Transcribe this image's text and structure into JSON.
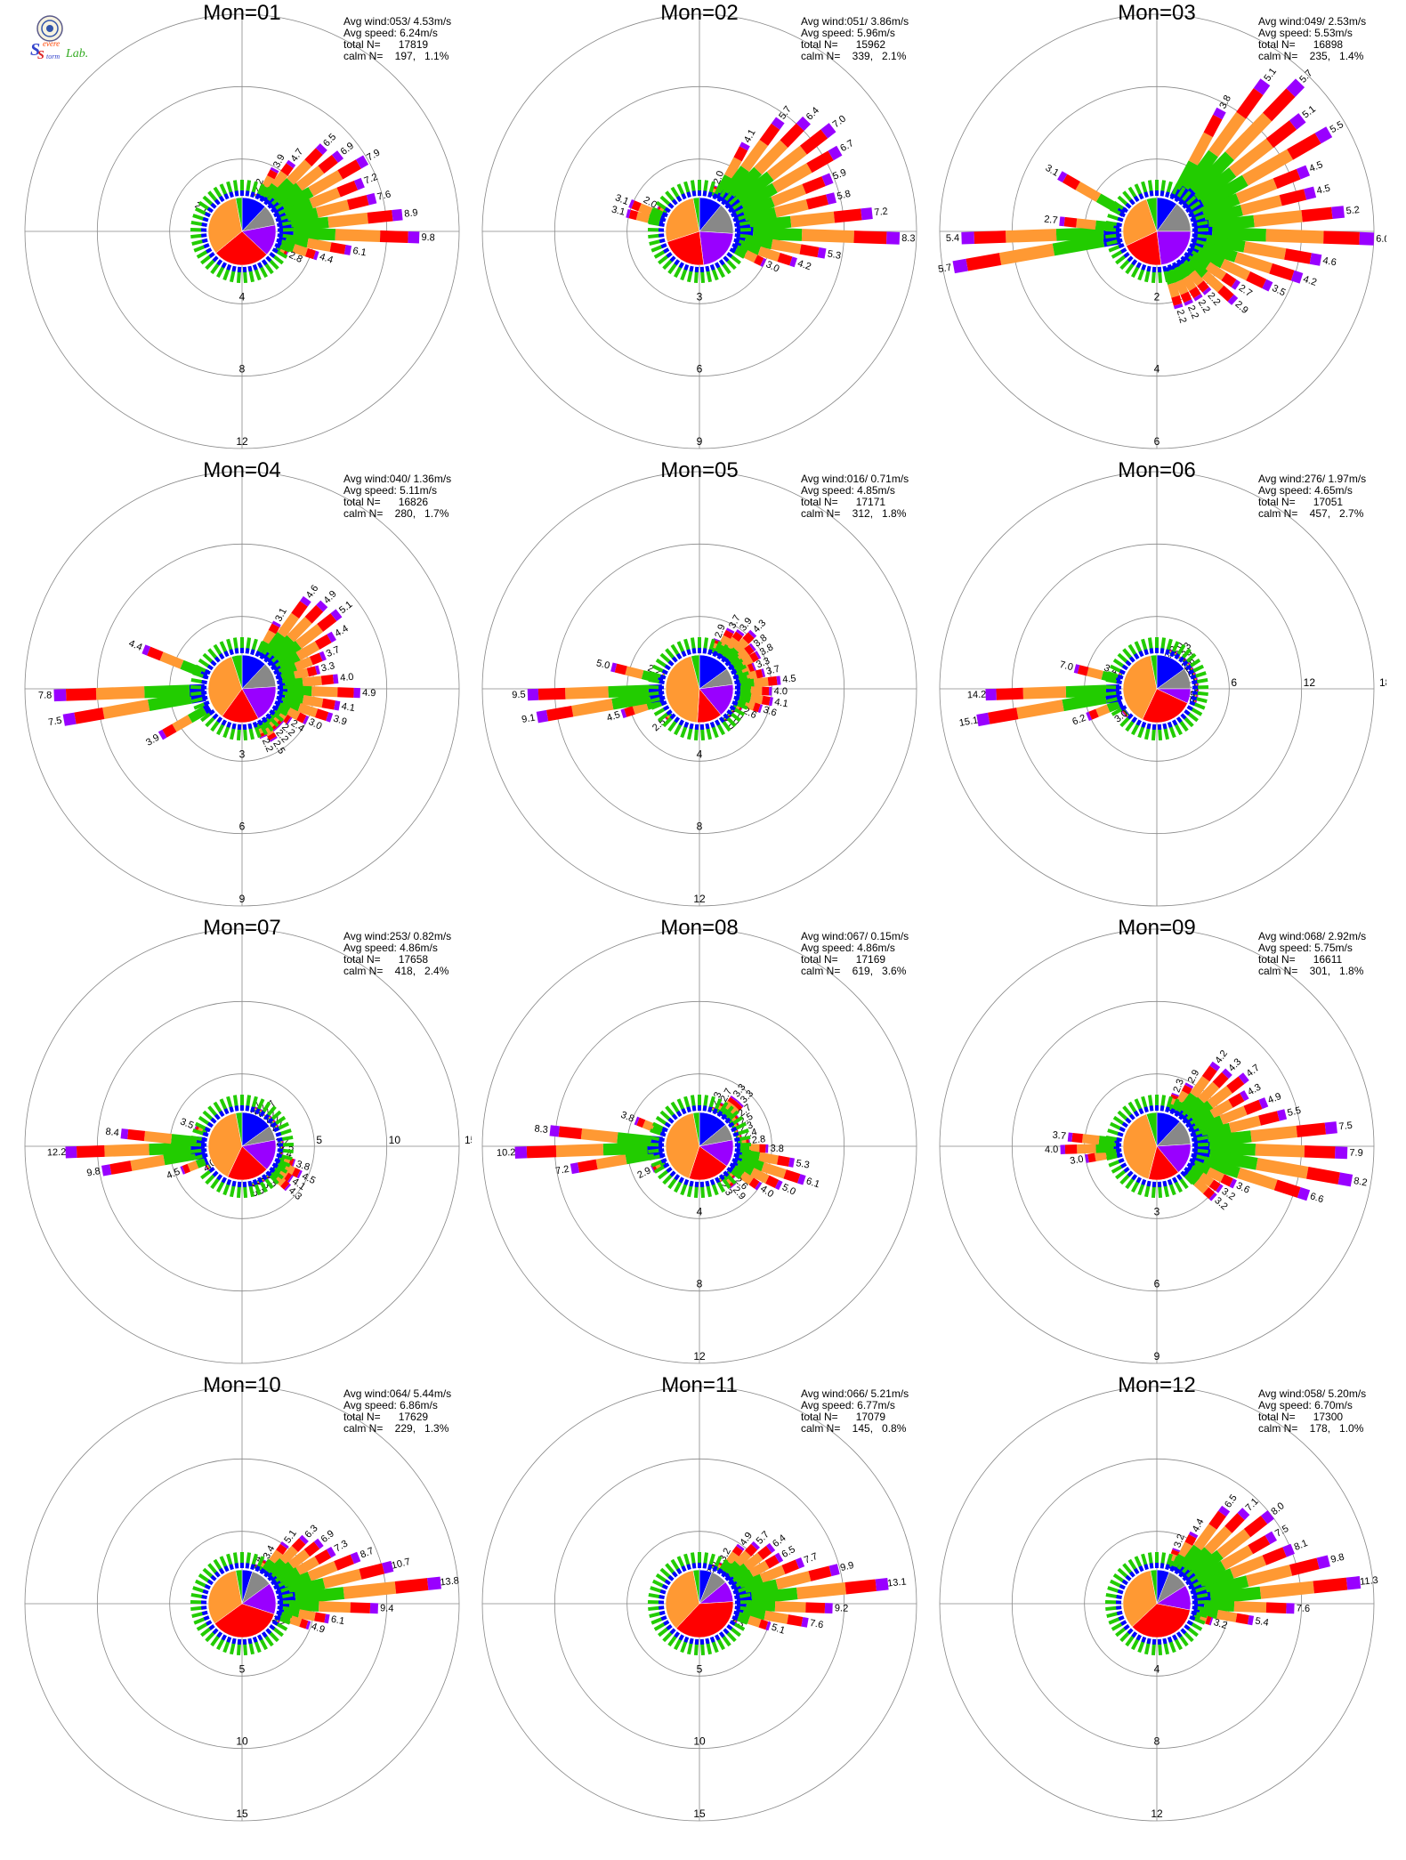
{
  "logo": {
    "text_s1": "S",
    "text_evere": "evere",
    "text_s2": "S",
    "text_torm": "torm",
    "text_lab": "Lab."
  },
  "colors": {
    "blue": "#0000ff",
    "green": "#22cc00",
    "orange": "#ff9933",
    "red": "#ff0000",
    "purple": "#9900ff",
    "gray": "#888888",
    "ring": "#888888"
  },
  "chart_data": [
    {
      "type": "windrose",
      "title": "Mon=01",
      "stats": [
        "Avg wind:053/ 4.53m/s",
        "Avg speed: 6.24m/s",
        "total N=      17819",
        "calm N=    197,   1.1%"
      ],
      "rings": [
        "4",
        "8",
        "12"
      ],
      "ring_max": 12,
      "ring_label_angle": 180,
      "labels": [
        [
          20,
          2.2
        ],
        [
          28,
          3.9
        ],
        [
          36,
          4.7
        ],
        [
          44,
          6.5
        ],
        [
          52,
          6.9
        ],
        [
          60,
          7.9
        ],
        [
          68,
          7.2
        ],
        [
          76,
          7.6
        ],
        [
          84,
          8.9
        ],
        [
          92,
          9.8
        ],
        [
          100,
          6.1
        ],
        [
          108,
          4.4
        ],
        [
          116,
          2.8
        ],
        [
          300,
          2.1
        ]
      ],
      "pie": [
        0.12,
        0.1,
        0.15,
        0.27,
        0.33,
        0.03
      ]
    },
    {
      "type": "windrose",
      "title": "Mon=02",
      "stats": [
        "Avg wind:051/ 3.86m/s",
        "Avg speed: 5.96m/s",
        "total N=      15962",
        "calm N=    339,   2.1%"
      ],
      "rings": [
        "3",
        "6",
        "9"
      ],
      "ring_max": 9,
      "ring_label_angle": 180,
      "labels": [
        [
          20,
          2.0
        ],
        [
          28,
          4.1
        ],
        [
          36,
          5.7
        ],
        [
          44,
          6.4
        ],
        [
          52,
          7.0
        ],
        [
          60,
          6.7
        ],
        [
          68,
          5.9
        ],
        [
          76,
          5.8
        ],
        [
          84,
          7.2
        ],
        [
          92,
          8.3
        ],
        [
          100,
          5.3
        ],
        [
          108,
          4.2
        ],
        [
          116,
          3.0
        ],
        [
          284,
          3.1
        ],
        [
          292,
          3.1
        ],
        [
          300,
          2.0
        ]
      ],
      "pie": [
        0.11,
        0.15,
        0.22,
        0.22,
        0.27,
        0.03
      ]
    },
    {
      "type": "windrose",
      "title": "Mon=03",
      "stats": [
        "Avg wind:049/ 2.53m/s",
        "Avg speed: 5.53m/s",
        "total N=      16898",
        "calm N=    235,   1.4%"
      ],
      "rings": [
        "2",
        "4",
        "6"
      ],
      "ring_max": 6,
      "ring_label_angle": 180,
      "labels": [
        [
          28,
          3.8
        ],
        [
          36,
          5.1
        ],
        [
          44,
          5.7
        ],
        [
          52,
          5.1
        ],
        [
          60,
          5.5
        ],
        [
          68,
          4.5
        ],
        [
          76,
          4.5
        ],
        [
          84,
          5.2
        ],
        [
          92,
          6.0
        ],
        [
          100,
          4.6
        ],
        [
          108,
          4.2
        ],
        [
          116,
          3.5
        ],
        [
          124,
          2.7
        ],
        [
          132,
          2.9
        ],
        [
          140,
          2.2
        ],
        [
          148,
          2.2
        ],
        [
          156,
          2.2
        ],
        [
          164,
          2.2
        ],
        [
          260,
          5.7
        ],
        [
          268,
          5.4
        ],
        [
          276,
          2.7
        ],
        [
          300,
          3.1
        ]
      ],
      "pie": [
        0.1,
        0.15,
        0.23,
        0.2,
        0.27,
        0.05
      ]
    },
    {
      "type": "windrose",
      "title": "Mon=04",
      "stats": [
        "Avg wind:040/ 1.36m/s",
        "Avg speed: 5.11m/s",
        "total N=      16826",
        "calm N=    280,   1.7%"
      ],
      "rings": [
        "3",
        "6",
        "9"
      ],
      "ring_max": 9,
      "ring_label_angle": 180,
      "labels": [
        [
          28,
          3.1
        ],
        [
          36,
          4.6
        ],
        [
          44,
          4.9
        ],
        [
          52,
          5.1
        ],
        [
          60,
          4.4
        ],
        [
          68,
          3.7
        ],
        [
          76,
          3.3
        ],
        [
          84,
          4.0
        ],
        [
          92,
          4.9
        ],
        [
          100,
          4.1
        ],
        [
          108,
          3.9
        ],
        [
          116,
          3.0
        ],
        [
          124,
          2.4
        ],
        [
          132,
          2.2
        ],
        [
          140,
          2.2
        ],
        [
          148,
          2.5
        ],
        [
          156,
          2.2
        ],
        [
          240,
          3.9
        ],
        [
          260,
          7.5
        ],
        [
          268,
          7.8
        ],
        [
          292,
          4.4
        ]
      ],
      "pie": [
        0.12,
        0.12,
        0.18,
        0.18,
        0.35,
        0.05
      ]
    },
    {
      "type": "windrose",
      "title": "Mon=05",
      "stats": [
        "Avg wind:016/ 0.71m/s",
        "Avg speed: 4.85m/s",
        "total N=      17171",
        "calm N=    312,   1.8%"
      ],
      "rings": [
        "4",
        "8",
        "12"
      ],
      "ring_max": 12,
      "ring_label_angle": 180,
      "labels": [
        [
          20,
          2.9
        ],
        [
          28,
          3.7
        ],
        [
          36,
          3.9
        ],
        [
          44,
          4.3
        ],
        [
          52,
          3.8
        ],
        [
          60,
          3.8
        ],
        [
          68,
          3.3
        ],
        [
          76,
          3.7
        ],
        [
          84,
          4.5
        ],
        [
          92,
          4.0
        ],
        [
          100,
          4.1
        ],
        [
          108,
          3.6
        ],
        [
          116,
          2.6
        ],
        [
          124,
          2.0
        ],
        [
          132,
          2.0
        ],
        [
          140,
          2.0
        ],
        [
          228,
          2.5
        ],
        [
          252,
          4.5
        ],
        [
          260,
          9.1
        ],
        [
          268,
          9.5
        ],
        [
          284,
          5.0
        ],
        [
          292,
          2.2
        ]
      ],
      "pie": [
        0.15,
        0.08,
        0.16,
        0.12,
        0.45,
        0.04
      ]
    },
    {
      "type": "windrose",
      "title": "Mon=06",
      "stats": [
        "Avg wind:276/ 1.97m/s",
        "Avg speed: 4.65m/s",
        "total N=      17051",
        "calm N=    457,   2.7%"
      ],
      "rings": [
        "6",
        "12",
        "18"
      ],
      "ring_max": 18,
      "ring_label_angle": 90,
      "labels": [
        [
          20,
          2.5
        ],
        [
          28,
          3.0
        ],
        [
          36,
          3.3
        ],
        [
          44,
          2.9
        ],
        [
          52,
          2.6
        ],
        [
          60,
          2.0
        ],
        [
          68,
          2.0
        ],
        [
          76,
          2.1
        ],
        [
          84,
          2.1
        ],
        [
          92,
          2.2
        ],
        [
          100,
          1.9
        ],
        [
          108,
          2.0
        ],
        [
          232,
          3.0
        ],
        [
          248,
          6.2
        ],
        [
          260,
          15.1
        ],
        [
          268,
          14.2
        ],
        [
          284,
          7.0
        ],
        [
          292,
          3.4
        ]
      ],
      "pie": [
        0.15,
        0.1,
        0.07,
        0.25,
        0.4,
        0.03
      ]
    },
    {
      "type": "windrose",
      "title": "Mon=07",
      "stats": [
        "Avg wind:253/ 0.82m/s",
        "Avg speed: 4.86m/s",
        "total N=      17658",
        "calm N=    418,   2.4%"
      ],
      "rings": [
        "5",
        "10",
        "15"
      ],
      "ring_max": 15,
      "ring_label_angle": 90,
      "labels": [
        [
          20,
          2.2
        ],
        [
          28,
          2.2
        ],
        [
          36,
          2.7
        ],
        [
          44,
          2.2
        ],
        [
          52,
          2.2
        ],
        [
          60,
          2.2
        ],
        [
          84,
          2.2
        ],
        [
          92,
          2.5
        ],
        [
          100,
          2.4
        ],
        [
          108,
          3.8
        ],
        [
          116,
          4.5
        ],
        [
          124,
          4.1
        ],
        [
          132,
          4.3
        ],
        [
          140,
          2.5
        ],
        [
          148,
          2.3
        ],
        [
          156,
          2.5
        ],
        [
          164,
          2.5
        ],
        [
          240,
          2.0
        ],
        [
          248,
          4.5
        ],
        [
          260,
          9.8
        ],
        [
          268,
          12.2
        ],
        [
          276,
          8.4
        ],
        [
          292,
          3.5
        ]
      ],
      "pie": [
        0.15,
        0.07,
        0.15,
        0.2,
        0.4,
        0.03
      ]
    },
    {
      "type": "windrose",
      "title": "Mon=08",
      "stats": [
        "Avg wind:067/ 0.15m/s",
        "Avg speed: 4.86m/s",
        "total N=      17169",
        "calm N=    619,   3.6%"
      ],
      "rings": [
        "4",
        "8",
        "12"
      ],
      "ring_max": 12,
      "ring_label_angle": 180,
      "labels": [
        [
          20,
          2.3
        ],
        [
          28,
          2.7
        ],
        [
          36,
          3.3
        ],
        [
          44,
          3.3
        ],
        [
          52,
          2.7
        ],
        [
          60,
          2.5
        ],
        [
          68,
          2.3
        ],
        [
          76,
          2.4
        ],
        [
          84,
          2.8
        ],
        [
          92,
          3.8
        ],
        [
          100,
          5.3
        ],
        [
          108,
          6.1
        ],
        [
          116,
          5.0
        ],
        [
          124,
          4.0
        ],
        [
          132,
          2.6
        ],
        [
          140,
          2.9
        ],
        [
          148,
          2.3
        ],
        [
          244,
          2.9
        ],
        [
          260,
          7.2
        ],
        [
          268,
          10.2
        ],
        [
          276,
          8.3
        ],
        [
          292,
          3.8
        ]
      ],
      "pie": [
        0.14,
        0.08,
        0.13,
        0.2,
        0.42,
        0.03
      ]
    },
    {
      "type": "windrose",
      "title": "Mon=09",
      "stats": [
        "Avg wind:068/ 2.92m/s",
        "Avg speed: 5.75m/s",
        "total N=      16611",
        "calm N=    301,   1.8%"
      ],
      "rings": [
        "3",
        "6",
        "9"
      ],
      "ring_max": 9,
      "ring_label_angle": 180,
      "labels": [
        [
          20,
          2.3
        ],
        [
          28,
          2.9
        ],
        [
          36,
          4.2
        ],
        [
          44,
          4.3
        ],
        [
          52,
          4.7
        ],
        [
          60,
          4.3
        ],
        [
          68,
          4.9
        ],
        [
          76,
          5.5
        ],
        [
          84,
          7.5
        ],
        [
          92,
          7.9
        ],
        [
          100,
          8.2
        ],
        [
          108,
          6.6
        ],
        [
          116,
          3.6
        ],
        [
          124,
          3.2
        ],
        [
          132,
          3.2
        ],
        [
          260,
          3.0
        ],
        [
          268,
          4.0
        ],
        [
          276,
          3.7
        ]
      ],
      "pie": [
        0.12,
        0.12,
        0.15,
        0.15,
        0.41,
        0.05
      ]
    },
    {
      "type": "windrose",
      "title": "Mon=10",
      "stats": [
        "Avg wind:064/ 5.44m/s",
        "Avg speed: 6.86m/s",
        "total N=      17629",
        "calm N=    229,   1.3%"
      ],
      "rings": [
        "5",
        "10",
        "15"
      ],
      "ring_max": 15,
      "ring_label_angle": 180,
      "labels": [
        [
          20,
          2.4
        ],
        [
          28,
          3.4
        ],
        [
          36,
          5.1
        ],
        [
          44,
          6.3
        ],
        [
          52,
          6.9
        ],
        [
          60,
          7.3
        ],
        [
          68,
          8.7
        ],
        [
          76,
          10.7
        ],
        [
          84,
          13.8
        ],
        [
          92,
          9.4
        ],
        [
          100,
          6.1
        ],
        [
          108,
          4.9
        ],
        [
          116,
          2.2
        ]
      ],
      "pie": [
        0.05,
        0.1,
        0.15,
        0.35,
        0.32,
        0.03
      ]
    },
    {
      "type": "windrose",
      "title": "Mon=11",
      "stats": [
        "Avg wind:066/ 5.21m/s",
        "Avg speed: 6.77m/s",
        "total N=      17079",
        "calm N=    145,   0.8%"
      ],
      "rings": [
        "5",
        "10",
        "15"
      ],
      "ring_max": 15,
      "ring_label_angle": 180,
      "labels": [
        [
          20,
          2.0
        ],
        [
          28,
          3.2
        ],
        [
          36,
          4.9
        ],
        [
          44,
          5.7
        ],
        [
          52,
          6.4
        ],
        [
          60,
          6.5
        ],
        [
          68,
          7.7
        ],
        [
          76,
          9.9
        ],
        [
          84,
          13.1
        ],
        [
          92,
          9.2
        ],
        [
          100,
          7.6
        ],
        [
          108,
          5.1
        ],
        [
          116,
          2.3
        ]
      ],
      "pie": [
        0.06,
        0.08,
        0.1,
        0.38,
        0.35,
        0.03
      ]
    },
    {
      "type": "windrose",
      "title": "Mon=12",
      "stats": [
        "Avg wind:058/ 5.20m/s",
        "Avg speed: 6.70m/s",
        "total N=      17300",
        "calm N=    178,   1.0%"
      ],
      "rings": [
        "4",
        "8",
        "12"
      ],
      "ring_max": 12,
      "ring_label_angle": 180,
      "labels": [
        [
          20,
          3.2
        ],
        [
          28,
          4.4
        ],
        [
          36,
          6.5
        ],
        [
          44,
          7.1
        ],
        [
          52,
          8.0
        ],
        [
          60,
          7.5
        ],
        [
          68,
          8.1
        ],
        [
          76,
          9.8
        ],
        [
          84,
          11.3
        ],
        [
          92,
          7.6
        ],
        [
          100,
          5.4
        ],
        [
          108,
          3.2
        ]
      ],
      "pie": [
        0.06,
        0.1,
        0.12,
        0.35,
        0.34,
        0.03
      ]
    }
  ]
}
